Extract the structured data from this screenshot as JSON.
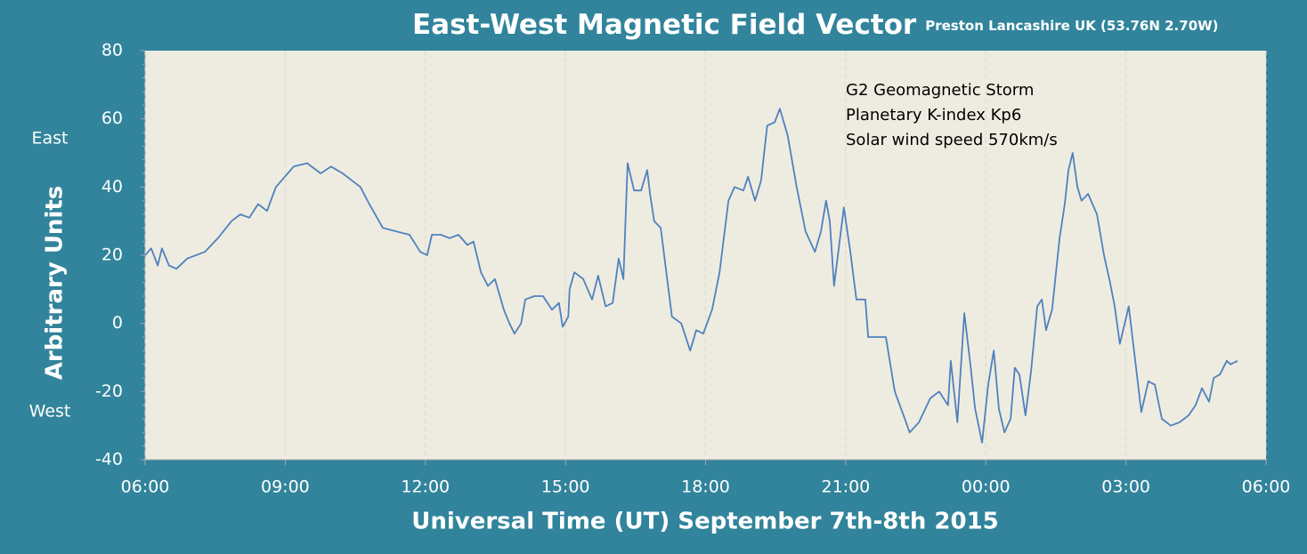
{
  "chart_data": {
    "type": "line",
    "title": "East-West Magnetic Field Vector",
    "subtitle": "Preston Lancashire UK (53.76N 2.70W)",
    "x_label": "Universal Time (UT) September 7th-8th 2015",
    "y_label": "Arbitrary Units",
    "y_annotations": [
      "East",
      "West"
    ],
    "annotation": [
      "G2 Geomagnetic Storm",
      "Planetary K-index Kp6",
      "Solar wind speed 570km/s"
    ],
    "xlim": [
      6,
      30
    ],
    "xticks": [
      {
        "value": 6,
        "label": "06:00"
      },
      {
        "value": 9,
        "label": "09:00"
      },
      {
        "value": 12,
        "label": "12:00"
      },
      {
        "value": 15,
        "label": "15:00"
      },
      {
        "value": 18,
        "label": "18:00"
      },
      {
        "value": 21,
        "label": "21:00"
      },
      {
        "value": 24,
        "label": "00:00"
      },
      {
        "value": 27,
        "label": "03:00"
      },
      {
        "value": 30,
        "label": "06:00"
      }
    ],
    "ylim": [
      -40,
      80
    ],
    "yticks": [
      -40,
      -20,
      0,
      20,
      40,
      60,
      80
    ],
    "grid": "x",
    "x": [
      6.0,
      6.13,
      6.27,
      6.36,
      6.51,
      6.67,
      6.9,
      7.28,
      7.56,
      7.85,
      8.04,
      8.23,
      8.42,
      8.61,
      8.8,
      8.99,
      9.18,
      9.47,
      9.76,
      9.98,
      10.23,
      10.42,
      10.61,
      10.8,
      11.09,
      11.38,
      11.66,
      11.89,
      12.04,
      12.14,
      12.33,
      12.52,
      12.71,
      12.9,
      13.03,
      13.19,
      13.34,
      13.49,
      13.68,
      13.8,
      13.91,
      14.05,
      14.14,
      14.33,
      14.52,
      14.71,
      14.86,
      14.94,
      15.06,
      15.09,
      15.19,
      15.38,
      15.57,
      15.7,
      15.86,
      16.01,
      16.14,
      16.24,
      16.33,
      16.47,
      16.62,
      16.75,
      16.81,
      16.9,
      17.04,
      17.28,
      17.48,
      17.67,
      17.8,
      17.95,
      18.14,
      18.3,
      18.49,
      18.62,
      18.81,
      18.91,
      19.06,
      19.19,
      19.32,
      19.48,
      19.59,
      19.76,
      19.95,
      20.14,
      20.34,
      20.47,
      20.58,
      20.66,
      20.75,
      20.96,
      21.1,
      21.23,
      21.42,
      21.48,
      21.86,
      22.05,
      22.24,
      22.37,
      22.57,
      22.81,
      23.0,
      23.19,
      23.25,
      23.39,
      23.54,
      23.67,
      23.77,
      23.92,
      24.05,
      24.17,
      24.28,
      24.4,
      24.53,
      24.62,
      24.72,
      24.85,
      24.97,
      25.1,
      25.2,
      25.29,
      25.42,
      25.58,
      25.69,
      25.77,
      25.86,
      25.96,
      26.05,
      26.19,
      26.38,
      26.53,
      26.66,
      26.76,
      26.87,
      27.01,
      27.06,
      27.2,
      27.33,
      27.48,
      27.62,
      27.77,
      27.96,
      28.15,
      28.34,
      28.49,
      28.63,
      28.78,
      28.88,
      29.01,
      29.16,
      29.24,
      29.39
    ],
    "series": [
      {
        "name": "East-West",
        "color": "#4f81bd",
        "values": [
          20,
          22,
          17,
          22,
          17,
          16,
          19,
          21,
          25,
          30,
          32,
          31,
          35,
          33,
          40,
          43,
          46,
          47,
          44,
          46,
          44,
          42,
          40,
          35,
          28,
          27,
          26,
          21,
          20,
          26,
          26,
          25,
          26,
          23,
          24,
          15,
          11,
          13,
          4,
          0,
          -3,
          0,
          7,
          8,
          8,
          4,
          6,
          -1,
          2,
          10,
          15,
          13,
          7,
          14,
          5,
          6,
          19,
          13,
          47,
          39,
          39,
          45,
          38,
          30,
          28,
          2,
          0,
          -8,
          -2,
          -3,
          4,
          15,
          36,
          40,
          39,
          43,
          36,
          42,
          58,
          59,
          63,
          55,
          40,
          27,
          21,
          27,
          36,
          30,
          11,
          34,
          21,
          7,
          7,
          -4,
          -4,
          -20,
          -27,
          -32,
          -29,
          -22,
          -20,
          -24,
          -11,
          -29,
          3,
          -12,
          -25,
          -35,
          -18,
          -8,
          -25,
          -32,
          -28,
          -13,
          -15,
          -27,
          -14,
          5,
          7,
          -2,
          4,
          25,
          35,
          45,
          50,
          40,
          36,
          38,
          32,
          20,
          12,
          5,
          -6,
          2,
          5,
          -11,
          -26,
          -17,
          -18,
          -28,
          -30,
          -29,
          -27,
          -24,
          -19,
          -23,
          -16,
          -15,
          -11,
          -12,
          -11
        ]
      }
    ]
  }
}
